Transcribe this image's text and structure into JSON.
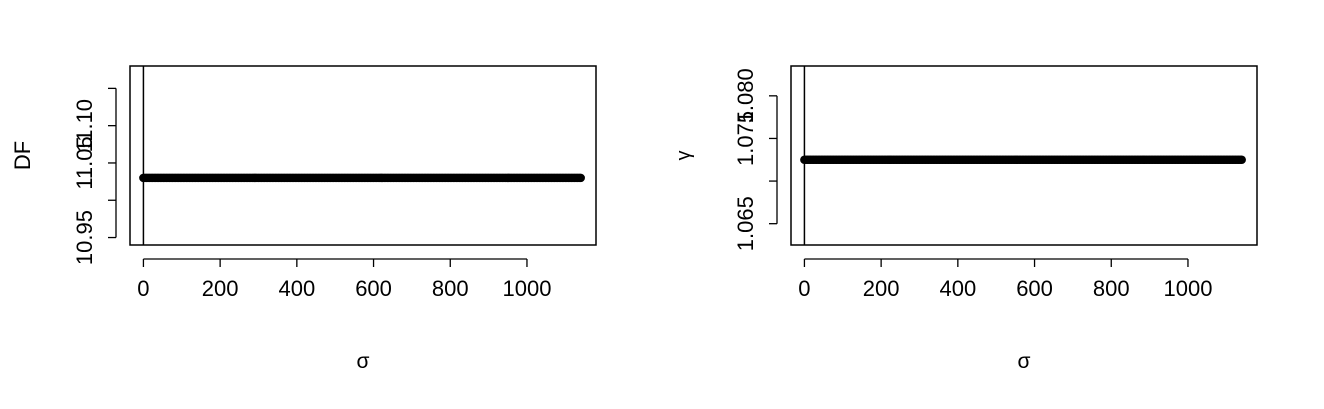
{
  "chart_data": [
    {
      "type": "scatter",
      "title": "",
      "xlabel": "σ",
      "ylabel": "DF",
      "xlim": [
        -35,
        1180
      ],
      "ylim": [
        10.94,
        11.18
      ],
      "xticks": [
        0,
        200,
        400,
        600,
        800,
        1000
      ],
      "xtick_labels": [
        "0",
        "200",
        "400",
        "600",
        "800",
        "1000"
      ],
      "yticks": [
        10.95,
        11.0,
        11.05,
        11.1,
        11.15
      ],
      "ytick_labels": [
        "10.95",
        "",
        "11.05",
        "11.10",
        ""
      ],
      "vline_x": 0,
      "series": [
        {
          "x_range": [
            0,
            1140
          ],
          "y": 11.03,
          "color": "#000000",
          "style": "dense points"
        }
      ],
      "grid": false,
      "legend": "none"
    },
    {
      "type": "scatter",
      "title": "",
      "xlabel": "σ",
      "ylabel": "γ",
      "xlim": [
        -35,
        1180
      ],
      "ylim": [
        1.0625,
        1.0835
      ],
      "xticks": [
        0,
        200,
        400,
        600,
        800,
        1000
      ],
      "xtick_labels": [
        "0",
        "200",
        "400",
        "600",
        "800",
        "1000"
      ],
      "yticks": [
        1.065,
        1.07,
        1.075,
        1.08
      ],
      "ytick_labels": [
        "1.065",
        "",
        "1.075",
        "1.080"
      ],
      "vline_x": 0,
      "series": [
        {
          "x_range": [
            0,
            1140
          ],
          "y": 1.0725,
          "color": "#000000",
          "style": "dense points"
        }
      ],
      "grid": false,
      "legend": "none"
    }
  ]
}
